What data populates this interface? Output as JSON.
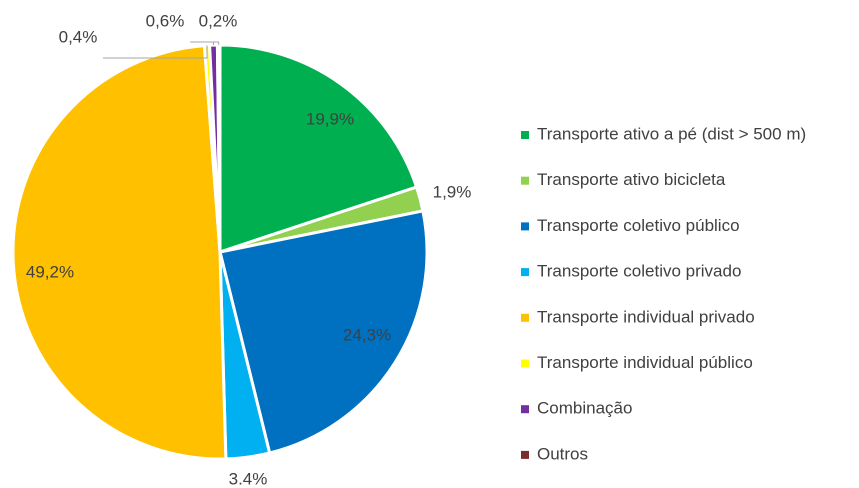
{
  "chart_data": {
    "type": "pie",
    "categories": [
      "Transporte ativo a pé (dist > 500 m)",
      "Transporte ativo bicicleta",
      "Transporte coletivo público",
      "Transporte coletivo privado",
      "Transporte individual privado",
      "Transporte individual público",
      "Combinação",
      "Outros"
    ],
    "values": [
      19.9,
      1.9,
      24.3,
      3.4,
      49.2,
      0.4,
      0.6,
      0.2
    ],
    "value_labels": [
      "19,9%",
      "1,9%",
      "24,3%",
      "3.4%",
      "49,2%",
      "0,4%",
      "0,6%",
      "0,2%"
    ],
    "colors": [
      "#00b050",
      "#92d050",
      "#0070c0",
      "#00b0f0",
      "#ffc000",
      "#ffff00",
      "#7030a0",
      "#7b2c2c"
    ],
    "legend": "right"
  }
}
